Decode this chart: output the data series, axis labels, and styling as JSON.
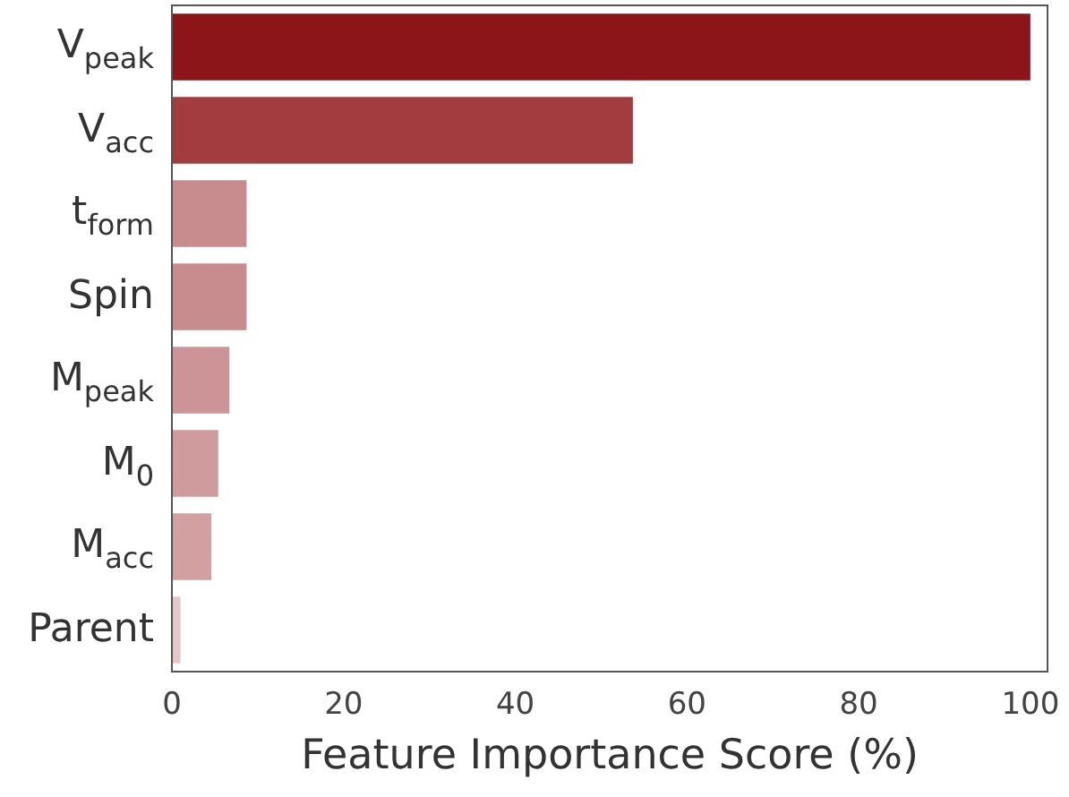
{
  "chart_data": {
    "type": "bar",
    "orientation": "horizontal",
    "xlabel": "Feature Importance Score (%)",
    "categories": [
      "V$_{peak}$",
      "V$_{acc}$",
      "t$_{form}$",
      "Spin",
      "M$_{peak}$",
      "M$_{0}$",
      "M$_{acc}$",
      "Parent"
    ],
    "values": [
      100,
      53.7,
      8.7,
      8.7,
      6.7,
      5.4,
      4.6,
      1.0
    ],
    "colors": [
      "#8b1518",
      "#a33c3f",
      "#c98c8e",
      "#c98c8e",
      "#cc9496",
      "#d09b9d",
      "#d3a0a2",
      "#e6c6c8"
    ],
    "xlim": [
      0,
      102
    ],
    "xticks": [
      0,
      20,
      40,
      60,
      80,
      100
    ],
    "grid": false,
    "legend": false
  }
}
